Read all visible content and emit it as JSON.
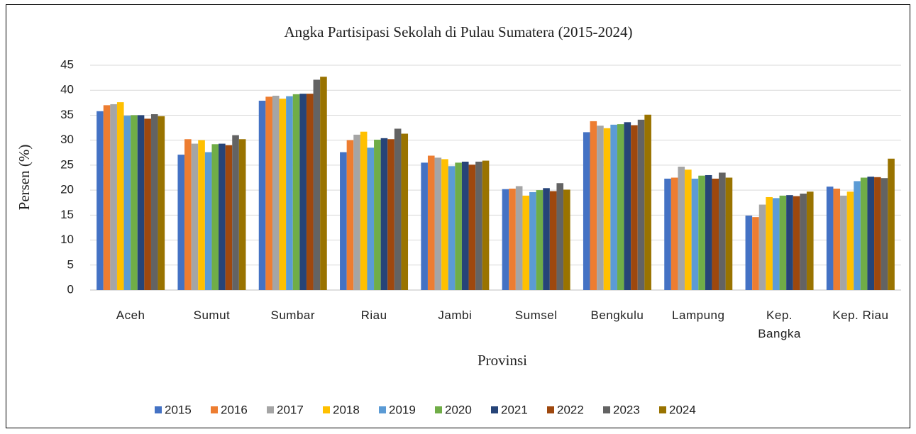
{
  "chart_data": {
    "type": "bar",
    "title": "Angka Partisipasi Sekolah di Pulau Sumatera (2015-2024)",
    "y_label": "Persen (%)",
    "x_label": "Provinsi",
    "categories": [
      "Aceh",
      "Sumut",
      "Sumbar",
      "Riau",
      "Jambi",
      "Sumsel",
      "Bengkulu",
      "Lampung",
      "Kep. Bangka",
      "Kep. Riau"
    ],
    "series": [
      {
        "name": "2015",
        "color": "#4472c4",
        "values": [
          35.8,
          27.1,
          37.9,
          27.6,
          25.5,
          20.2,
          31.6,
          22.3,
          14.9,
          20.7
        ]
      },
      {
        "name": "2016",
        "color": "#ed7d31",
        "values": [
          37.0,
          30.2,
          38.7,
          30.0,
          26.9,
          20.3,
          33.8,
          22.5,
          14.6,
          20.3
        ]
      },
      {
        "name": "2017",
        "color": "#a5a5a5",
        "values": [
          37.2,
          29.3,
          38.9,
          31.1,
          26.5,
          20.8,
          32.9,
          24.7,
          17.1,
          18.9
        ]
      },
      {
        "name": "2018",
        "color": "#ffc000",
        "values": [
          37.6,
          30.0,
          38.3,
          31.7,
          26.2,
          18.9,
          32.4,
          24.1,
          18.6,
          19.7
        ]
      },
      {
        "name": "2019",
        "color": "#5b9bd5",
        "values": [
          34.9,
          27.6,
          38.8,
          28.5,
          24.8,
          19.6,
          33.1,
          22.3,
          18.4,
          21.8
        ]
      },
      {
        "name": "2020",
        "color": "#70ad47",
        "values": [
          35.0,
          29.2,
          39.2,
          30.1,
          25.5,
          20.0,
          33.2,
          22.9,
          18.9,
          22.5
        ]
      },
      {
        "name": "2021",
        "color": "#264478",
        "values": [
          35.0,
          29.3,
          39.3,
          30.4,
          25.7,
          20.4,
          33.6,
          23.0,
          19.0,
          22.7
        ]
      },
      {
        "name": "2022",
        "color": "#9e480e",
        "values": [
          34.3,
          29.0,
          39.3,
          30.2,
          25.1,
          19.8,
          33.0,
          22.3,
          18.8,
          22.6
        ]
      },
      {
        "name": "2023",
        "color": "#636363",
        "values": [
          35.2,
          31.0,
          42.1,
          32.3,
          25.7,
          21.4,
          34.1,
          23.5,
          19.3,
          22.4
        ]
      },
      {
        "name": "2024",
        "color": "#997300",
        "values": [
          34.8,
          30.2,
          42.7,
          31.3,
          25.9,
          20.1,
          35.1,
          22.5,
          19.7,
          26.3
        ]
      }
    ],
    "ylim": [
      0,
      45
    ],
    "yticks": [
      0,
      5,
      10,
      15,
      20,
      25,
      30,
      35,
      40,
      45
    ],
    "grid": true,
    "legend": "bottom"
  }
}
